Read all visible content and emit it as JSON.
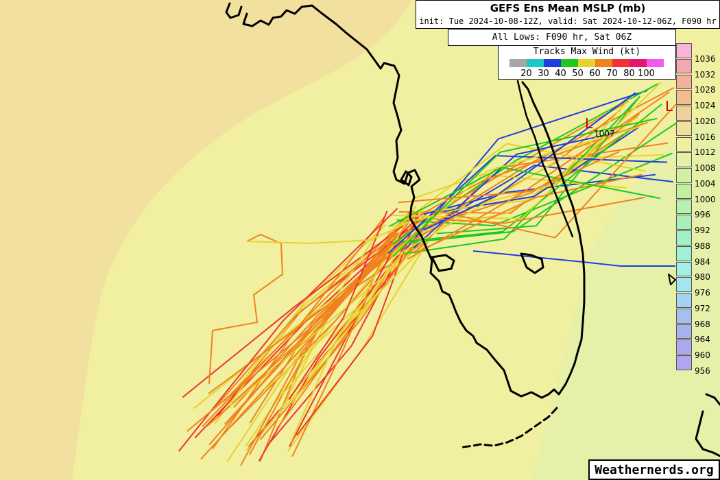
{
  "header": {
    "title": "GEFS Ens Mean MSLP (mb)",
    "subtitle": "init: Tue 2024-10-08-12Z, valid: Sat 2024-10-12-06Z, F090 hr"
  },
  "lows_label": "All Lows: F090 hr, Sat 06Z",
  "wind_legend": {
    "title": "Tracks Max Wind (kt)",
    "colors": [
      "#a6a6a6",
      "#1ec8c8",
      "#1f3de0",
      "#1ec81e",
      "#e6d22d",
      "#f0821e",
      "#f03232",
      "#e6166e",
      "#f05af0"
    ],
    "labels": [
      "20",
      "30",
      "40",
      "50",
      "60",
      "70",
      "80",
      "100"
    ]
  },
  "mslp_scale": [
    {
      "label": "1036",
      "color": "#fab4dc"
    },
    {
      "label": "1032",
      "color": "#f2a7b4"
    },
    {
      "label": "1028",
      "color": "#f2b09a"
    },
    {
      "label": "1024",
      "color": "#f2bc8c"
    },
    {
      "label": "1020",
      "color": "#f2d09c"
    },
    {
      "label": "1016",
      "color": "#f2e09e"
    },
    {
      "label": "1012",
      "color": "#f0f0a0"
    },
    {
      "label": "1008",
      "color": "#e6f0a8"
    },
    {
      "label": "1004",
      "color": "#d2f0a4"
    },
    {
      "label": "1000",
      "color": "#c0f0a0"
    },
    {
      "label": "996",
      "color": "#b4f0b0"
    },
    {
      "label": "992",
      "color": "#a8f0b8"
    },
    {
      "label": "988",
      "color": "#a0f0c8"
    },
    {
      "label": "984",
      "color": "#a0f0d8"
    },
    {
      "label": "980",
      "color": "#a0f0e8"
    },
    {
      "label": "976",
      "color": "#a4e6f0"
    },
    {
      "label": "972",
      "color": "#a4d2f0"
    },
    {
      "label": "968",
      "color": "#a4c0f0"
    },
    {
      "label": "964",
      "color": "#a8b0f0"
    },
    {
      "label": "960",
      "color": "#aca8f0"
    },
    {
      "label": "956",
      "color": "#b4a4f0"
    }
  ],
  "lows": [
    {
      "letter": "L",
      "value": "1007"
    },
    {
      "letter": "L",
      "value": ""
    }
  ],
  "credit": "Weathernerds.org",
  "map_colors": {
    "field_1016": "#f2e09e",
    "field_1012": "#f0f0a0",
    "field_1008": "#e6f0a8",
    "land_outline": "#000000"
  }
}
